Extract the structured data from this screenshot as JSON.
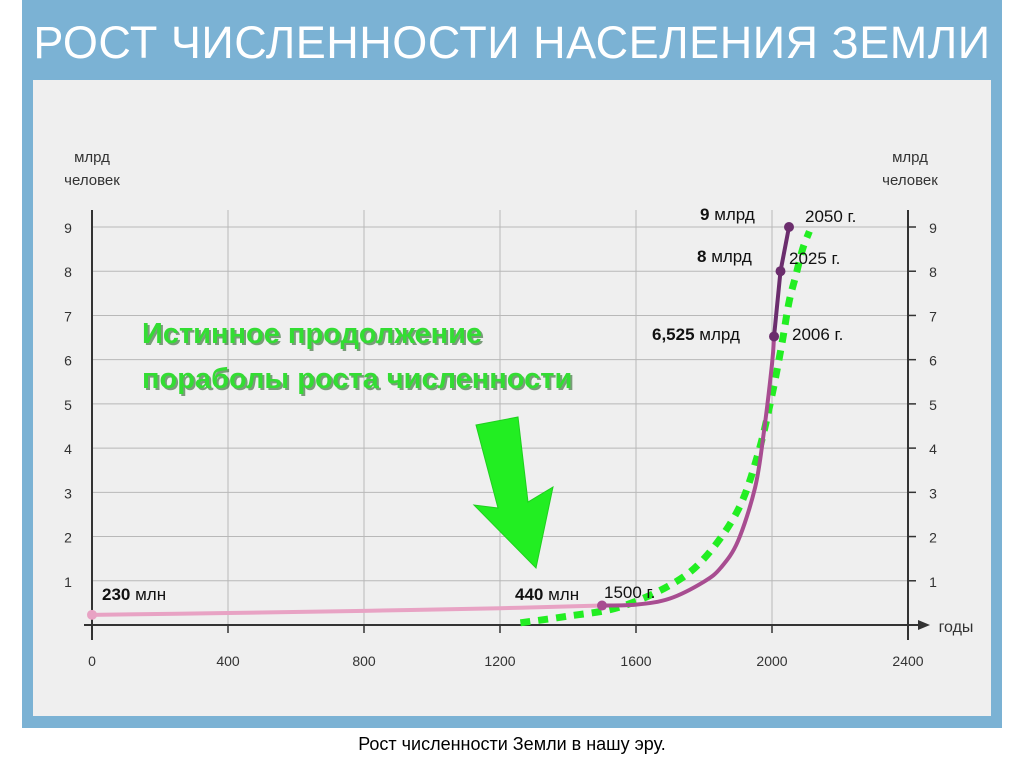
{
  "title": "РОСТ ЧИСЛЕННОСТИ НАСЕЛЕНИЯ ЗЕМЛИ",
  "caption": "Рост численности Земли в нашу эру.",
  "colors": {
    "frame": "#7bb2d4",
    "panel": "#efefef",
    "curve_early": "#e8a3c4",
    "curve_mid": "#a84d91",
    "curve_forecast": "#6b2d6d",
    "dotted": "#22ee22",
    "arrow": "#22ee22",
    "annotation_text": "#33dd33"
  },
  "annotation": {
    "line1": "Истинное продолжение",
    "line2": "пораболы роста численности",
    "arrow_icon": "arrow-down-icon"
  },
  "chart_data": {
    "type": "line",
    "xlabel": "годы",
    "ylabel_left": "млрд человек",
    "ylabel_right": "млрд человек",
    "x_ticks": [
      0,
      400,
      800,
      1200,
      1600,
      2000,
      2400
    ],
    "y_ticks": [
      1,
      2,
      3,
      4,
      5,
      6,
      7,
      8,
      9
    ],
    "xlim": [
      0,
      2400
    ],
    "ylim": [
      0,
      9
    ],
    "grid": true,
    "series": [
      {
        "segment": "early",
        "x": [
          0,
          400,
          800,
          1200,
          1500
        ],
        "y": [
          0.23,
          0.27,
          0.32,
          0.38,
          0.44
        ]
      },
      {
        "segment": "growth",
        "x": [
          1500,
          1600,
          1700,
          1800,
          1850,
          1900,
          1950,
          1975,
          2000,
          2006
        ],
        "y": [
          0.44,
          0.46,
          0.6,
          0.98,
          1.3,
          1.9,
          3.1,
          4.3,
          5.9,
          6.525
        ]
      },
      {
        "segment": "forecast",
        "x": [
          2006,
          2025,
          2050
        ],
        "y": [
          6.525,
          8,
          9
        ]
      },
      {
        "segment": "dotted-trend",
        "x": [
          1260,
          1400,
          1550,
          1700,
          1800,
          1900,
          1960,
          2000,
          2030,
          2050,
          2070,
          2090,
          2110
        ],
        "y": [
          0.05,
          0.2,
          0.4,
          0.9,
          1.5,
          2.6,
          3.9,
          5.2,
          6.4,
          7.3,
          7.9,
          8.5,
          8.9
        ]
      }
    ],
    "points": [
      {
        "x": 0,
        "y": 0.23,
        "value": "230",
        "unit": "млн",
        "year": ""
      },
      {
        "x": 1500,
        "y": 0.44,
        "value": "440",
        "unit": "млн",
        "year": "1500 г."
      },
      {
        "x": 2006,
        "y": 6.525,
        "value": "6,525",
        "unit": "млрд",
        "year": "2006 г."
      },
      {
        "x": 2025,
        "y": 8,
        "value": "8",
        "unit": "млрд",
        "year": "2025 г."
      },
      {
        "x": 2050,
        "y": 9,
        "value": "9",
        "unit": "млрд",
        "year": "2050 г."
      }
    ]
  }
}
